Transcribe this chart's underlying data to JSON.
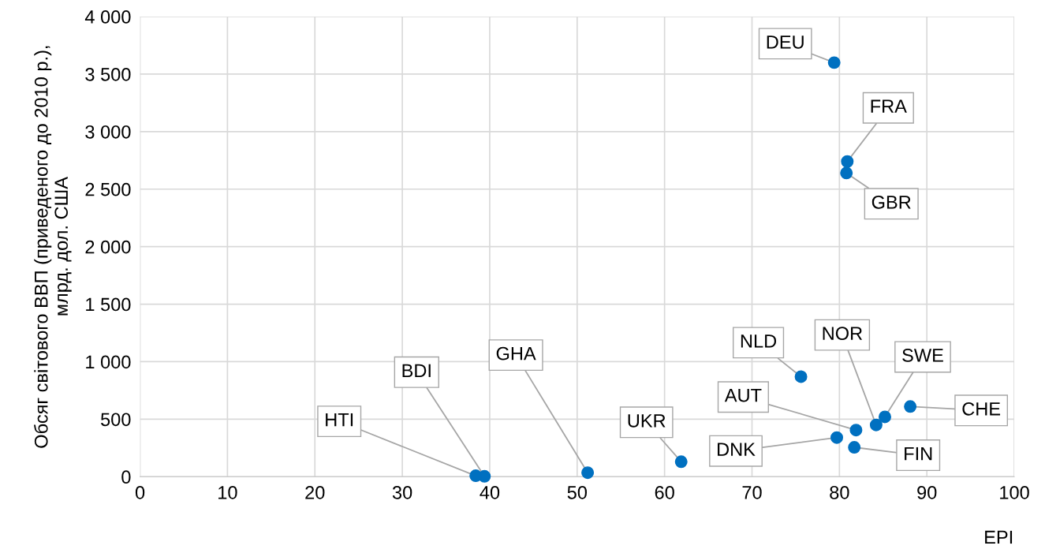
{
  "chart_data": {
    "type": "scatter",
    "xlabel": "EPI",
    "ylabel": "Обсяг світового ВВП (приведеного до 2010 р.),\nмлрд. дол. США",
    "series": [
      {
        "color": "#0070c0",
        "x": [
          79.4,
          80.9,
          80.8,
          75.6,
          84.2,
          85.2,
          88.1,
          81.9,
          79.7,
          81.7,
          61.9,
          51.2,
          39.4,
          38.4
        ],
        "values": [
          3600,
          2740,
          2640,
          870,
          450,
          520,
          610,
          405,
          340,
          255,
          130,
          35,
          3,
          8
        ]
      }
    ],
    "marker": "circle",
    "xlim": [
      0,
      100
    ],
    "xticks": [
      0,
      10,
      20,
      30,
      40,
      50,
      60,
      70,
      80,
      90,
      100
    ],
    "ylim": [
      0,
      4000
    ],
    "yticks": [
      0,
      500,
      {
        "value": 1000,
        "label": "1 000"
      },
      {
        "value": 1500,
        "label": "1 500"
      },
      {
        "value": 2000,
        "label": "2 000"
      },
      {
        "value": 2500,
        "label": "2 500"
      },
      {
        "value": 3000,
        "label": "3 000"
      },
      {
        "value": 3500,
        "label": "3 500"
      },
      {
        "value": 4000,
        "label": "4 000"
      }
    ],
    "grid": true,
    "annotations": [
      {
        "text": "DEU",
        "x": 79.4,
        "y": 3600
      },
      {
        "text": "FRA",
        "x": 80.9,
        "y": 2740
      },
      {
        "text": "GBR",
        "x": 80.8,
        "y": 2640
      },
      {
        "text": "NLD",
        "x": 75.6,
        "y": 870
      },
      {
        "text": "NOR",
        "x": 84.2,
        "y": 450
      },
      {
        "text": "SWE",
        "x": 85.2,
        "y": 520
      },
      {
        "text": "CHE",
        "x": 88.1,
        "y": 610
      },
      {
        "text": "AUT",
        "x": 81.9,
        "y": 405
      },
      {
        "text": "DNK",
        "x": 79.7,
        "y": 340
      },
      {
        "text": "FIN",
        "x": 81.7,
        "y": 255
      },
      {
        "text": "UKR",
        "x": 61.9,
        "y": 130
      },
      {
        "text": "GHA",
        "x": 51.2,
        "y": 35
      },
      {
        "text": "BDI",
        "x": 39.4,
        "y": 3
      },
      {
        "text": "HTI",
        "x": 38.4,
        "y": 8
      }
    ]
  }
}
